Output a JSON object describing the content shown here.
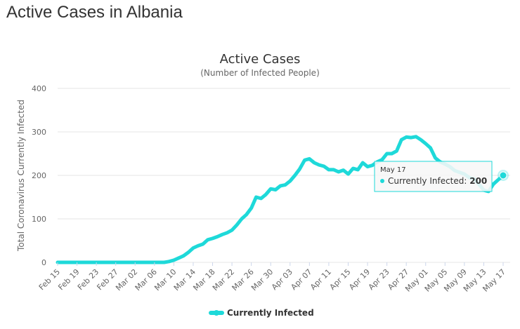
{
  "page": {
    "title": "Active Cases in Albania"
  },
  "colors": {
    "series": "#1ed9d9",
    "grid": "#e6e6e6",
    "axis": "#ccd6eb",
    "tooltip_border": "#1ed9d9"
  },
  "chart_data": {
    "type": "area",
    "title": "Active Cases",
    "subtitle": "(Number of Infected People)",
    "ylabel": "Total Coronavirus Currently Infected",
    "xlabel": "",
    "ylim": [
      0,
      400
    ],
    "y_ticks": [
      0,
      100,
      200,
      300,
      400
    ],
    "x_tick_labels": [
      "Feb 15",
      "Feb 19",
      "Feb 23",
      "Feb 27",
      "Mar 02",
      "Mar 06",
      "Mar 10",
      "Mar 14",
      "Mar 18",
      "Mar 22",
      "Mar 26",
      "Mar 30",
      "Apr 03",
      "Apr 07",
      "Apr 11",
      "Apr 15",
      "Apr 19",
      "Apr 23",
      "Apr 27",
      "May 01",
      "May 05",
      "May 09",
      "May 13",
      "May 17"
    ],
    "grid": true,
    "legend_position": "bottom",
    "series": [
      {
        "name": "Currently Infected",
        "x": [
          "Feb 15",
          "Feb 16",
          "Feb 17",
          "Feb 18",
          "Feb 19",
          "Feb 20",
          "Feb 21",
          "Feb 22",
          "Feb 23",
          "Feb 24",
          "Feb 25",
          "Feb 26",
          "Feb 27",
          "Feb 28",
          "Feb 29",
          "Mar 01",
          "Mar 02",
          "Mar 03",
          "Mar 04",
          "Mar 05",
          "Mar 06",
          "Mar 07",
          "Mar 08",
          "Mar 09",
          "Mar 10",
          "Mar 11",
          "Mar 12",
          "Mar 13",
          "Mar 14",
          "Mar 15",
          "Mar 16",
          "Mar 17",
          "Mar 18",
          "Mar 19",
          "Mar 20",
          "Mar 21",
          "Mar 22",
          "Mar 23",
          "Mar 24",
          "Mar 25",
          "Mar 26",
          "Mar 27",
          "Mar 28",
          "Mar 29",
          "Mar 30",
          "Mar 31",
          "Apr 01",
          "Apr 02",
          "Apr 03",
          "Apr 04",
          "Apr 05",
          "Apr 06",
          "Apr 07",
          "Apr 08",
          "Apr 09",
          "Apr 10",
          "Apr 11",
          "Apr 12",
          "Apr 13",
          "Apr 14",
          "Apr 15",
          "Apr 16",
          "Apr 17",
          "Apr 18",
          "Apr 19",
          "Apr 20",
          "Apr 21",
          "Apr 22",
          "Apr 23",
          "Apr 24",
          "Apr 25",
          "Apr 26",
          "Apr 27",
          "Apr 28",
          "Apr 29",
          "Apr 30",
          "May 01",
          "May 02",
          "May 03",
          "May 04",
          "May 05",
          "May 06",
          "May 07",
          "May 08",
          "May 09",
          "May 10",
          "May 11",
          "May 12",
          "May 13",
          "May 14",
          "May 15",
          "May 16",
          "May 17"
        ],
        "values": [
          0,
          0,
          0,
          0,
          0,
          0,
          0,
          0,
          0,
          0,
          0,
          0,
          0,
          0,
          0,
          0,
          0,
          0,
          0,
          0,
          0,
          0,
          0,
          2,
          5,
          10,
          15,
          23,
          33,
          38,
          42,
          52,
          55,
          59,
          64,
          68,
          74,
          86,
          100,
          110,
          125,
          150,
          147,
          156,
          169,
          167,
          176,
          178,
          187,
          200,
          215,
          235,
          238,
          229,
          224,
          221,
          213,
          213,
          208,
          212,
          203,
          216,
          213,
          229,
          220,
          223,
          231,
          236,
          250,
          250,
          256,
          282,
          288,
          287,
          289,
          282,
          273,
          263,
          240,
          231,
          226,
          220,
          211,
          207,
          203,
          195,
          192,
          180,
          166,
          163,
          180,
          190,
          200
        ]
      }
    ]
  },
  "tooltip": {
    "date": "May 17",
    "label": "Currently Infected",
    "value": "200"
  }
}
